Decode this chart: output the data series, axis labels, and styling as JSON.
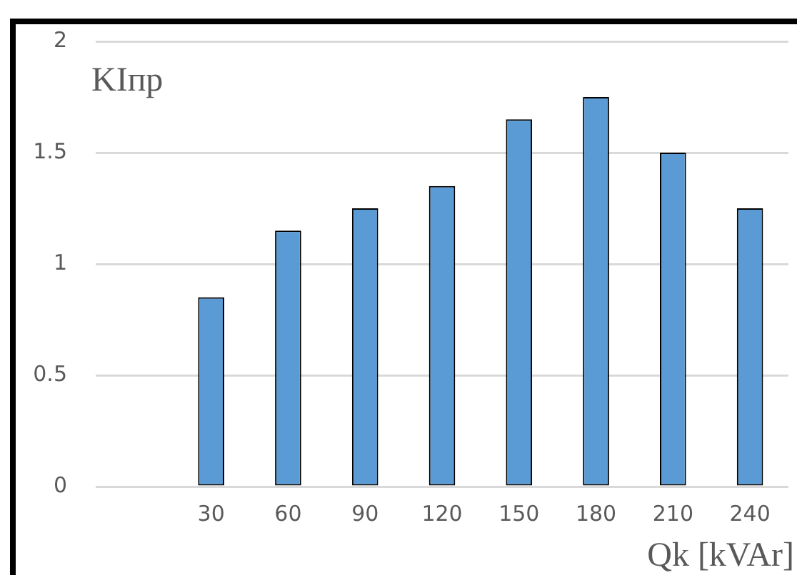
{
  "chart_data": {
    "type": "bar",
    "xlabel": "Qk [kVAr]",
    "ylabel": "KIпр",
    "categories": [
      null,
      "30",
      "60",
      "90",
      "120",
      "150",
      "180",
      "210",
      "240"
    ],
    "values": [
      null,
      0.85,
      1.15,
      1.25,
      1.35,
      1.65,
      1.75,
      1.5,
      1.25
    ],
    "color": "#5b9bd5",
    "ylim": [
      0,
      2
    ],
    "yticks": [
      0,
      0.5,
      1,
      1.5,
      2
    ],
    "grid": "y",
    "legend": false
  }
}
